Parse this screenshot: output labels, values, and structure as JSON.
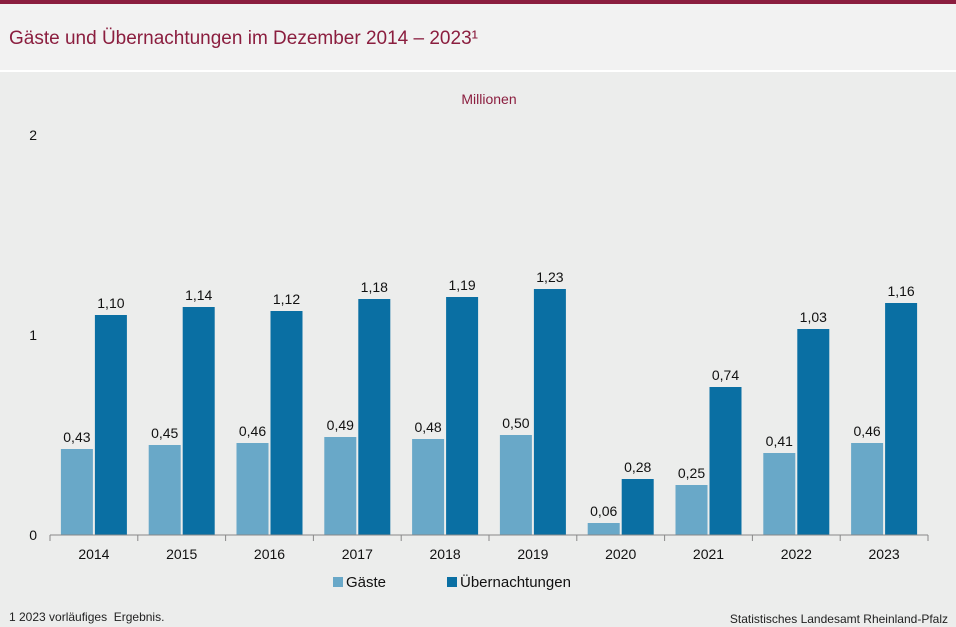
{
  "header": {
    "title": "Gäste und Übernachtungen im Dezember 2014 – 2023¹"
  },
  "footer": {
    "footnote": "1 2023 vorläufiges  Ergebnis.",
    "source": "Statistisches Landesamt Rheinland-Pfalz"
  },
  "colors": {
    "accent": "#8b1e3f",
    "gaeste": "#69a8c8",
    "uebernachtungen": "#0a6fa3"
  },
  "chart_data": {
    "type": "bar",
    "title": "Gäste und Übernachtungen im Dezember 2014 – 2023¹",
    "unit_label": "Millionen",
    "categories": [
      "2014",
      "2015",
      "2016",
      "2017",
      "2018",
      "2019",
      "2020",
      "2021",
      "2022",
      "2023"
    ],
    "series": [
      {
        "name": "Gäste",
        "values": [
          0.43,
          0.45,
          0.46,
          0.49,
          0.48,
          0.5,
          0.06,
          0.25,
          0.41,
          0.46
        ],
        "labels": [
          "0,43",
          "0,45",
          "0,46",
          "0,49",
          "0,48",
          "0,50",
          "0,06",
          "0,25",
          "0,41",
          "0,46"
        ]
      },
      {
        "name": "Übernachtungen",
        "values": [
          1.1,
          1.14,
          1.12,
          1.18,
          1.19,
          1.23,
          0.28,
          0.74,
          1.03,
          1.16
        ],
        "labels": [
          "1,10",
          "1,14",
          "1,12",
          "1,18",
          "1,19",
          "1,23",
          "0,28",
          "0,74",
          "1,03",
          "1,16"
        ]
      }
    ],
    "ylim": [
      0,
      2
    ],
    "yticks": [
      0,
      1,
      2
    ],
    "ytick_labels": [
      "0",
      "1",
      "2"
    ],
    "grid": false,
    "legend": "bottom-center"
  }
}
